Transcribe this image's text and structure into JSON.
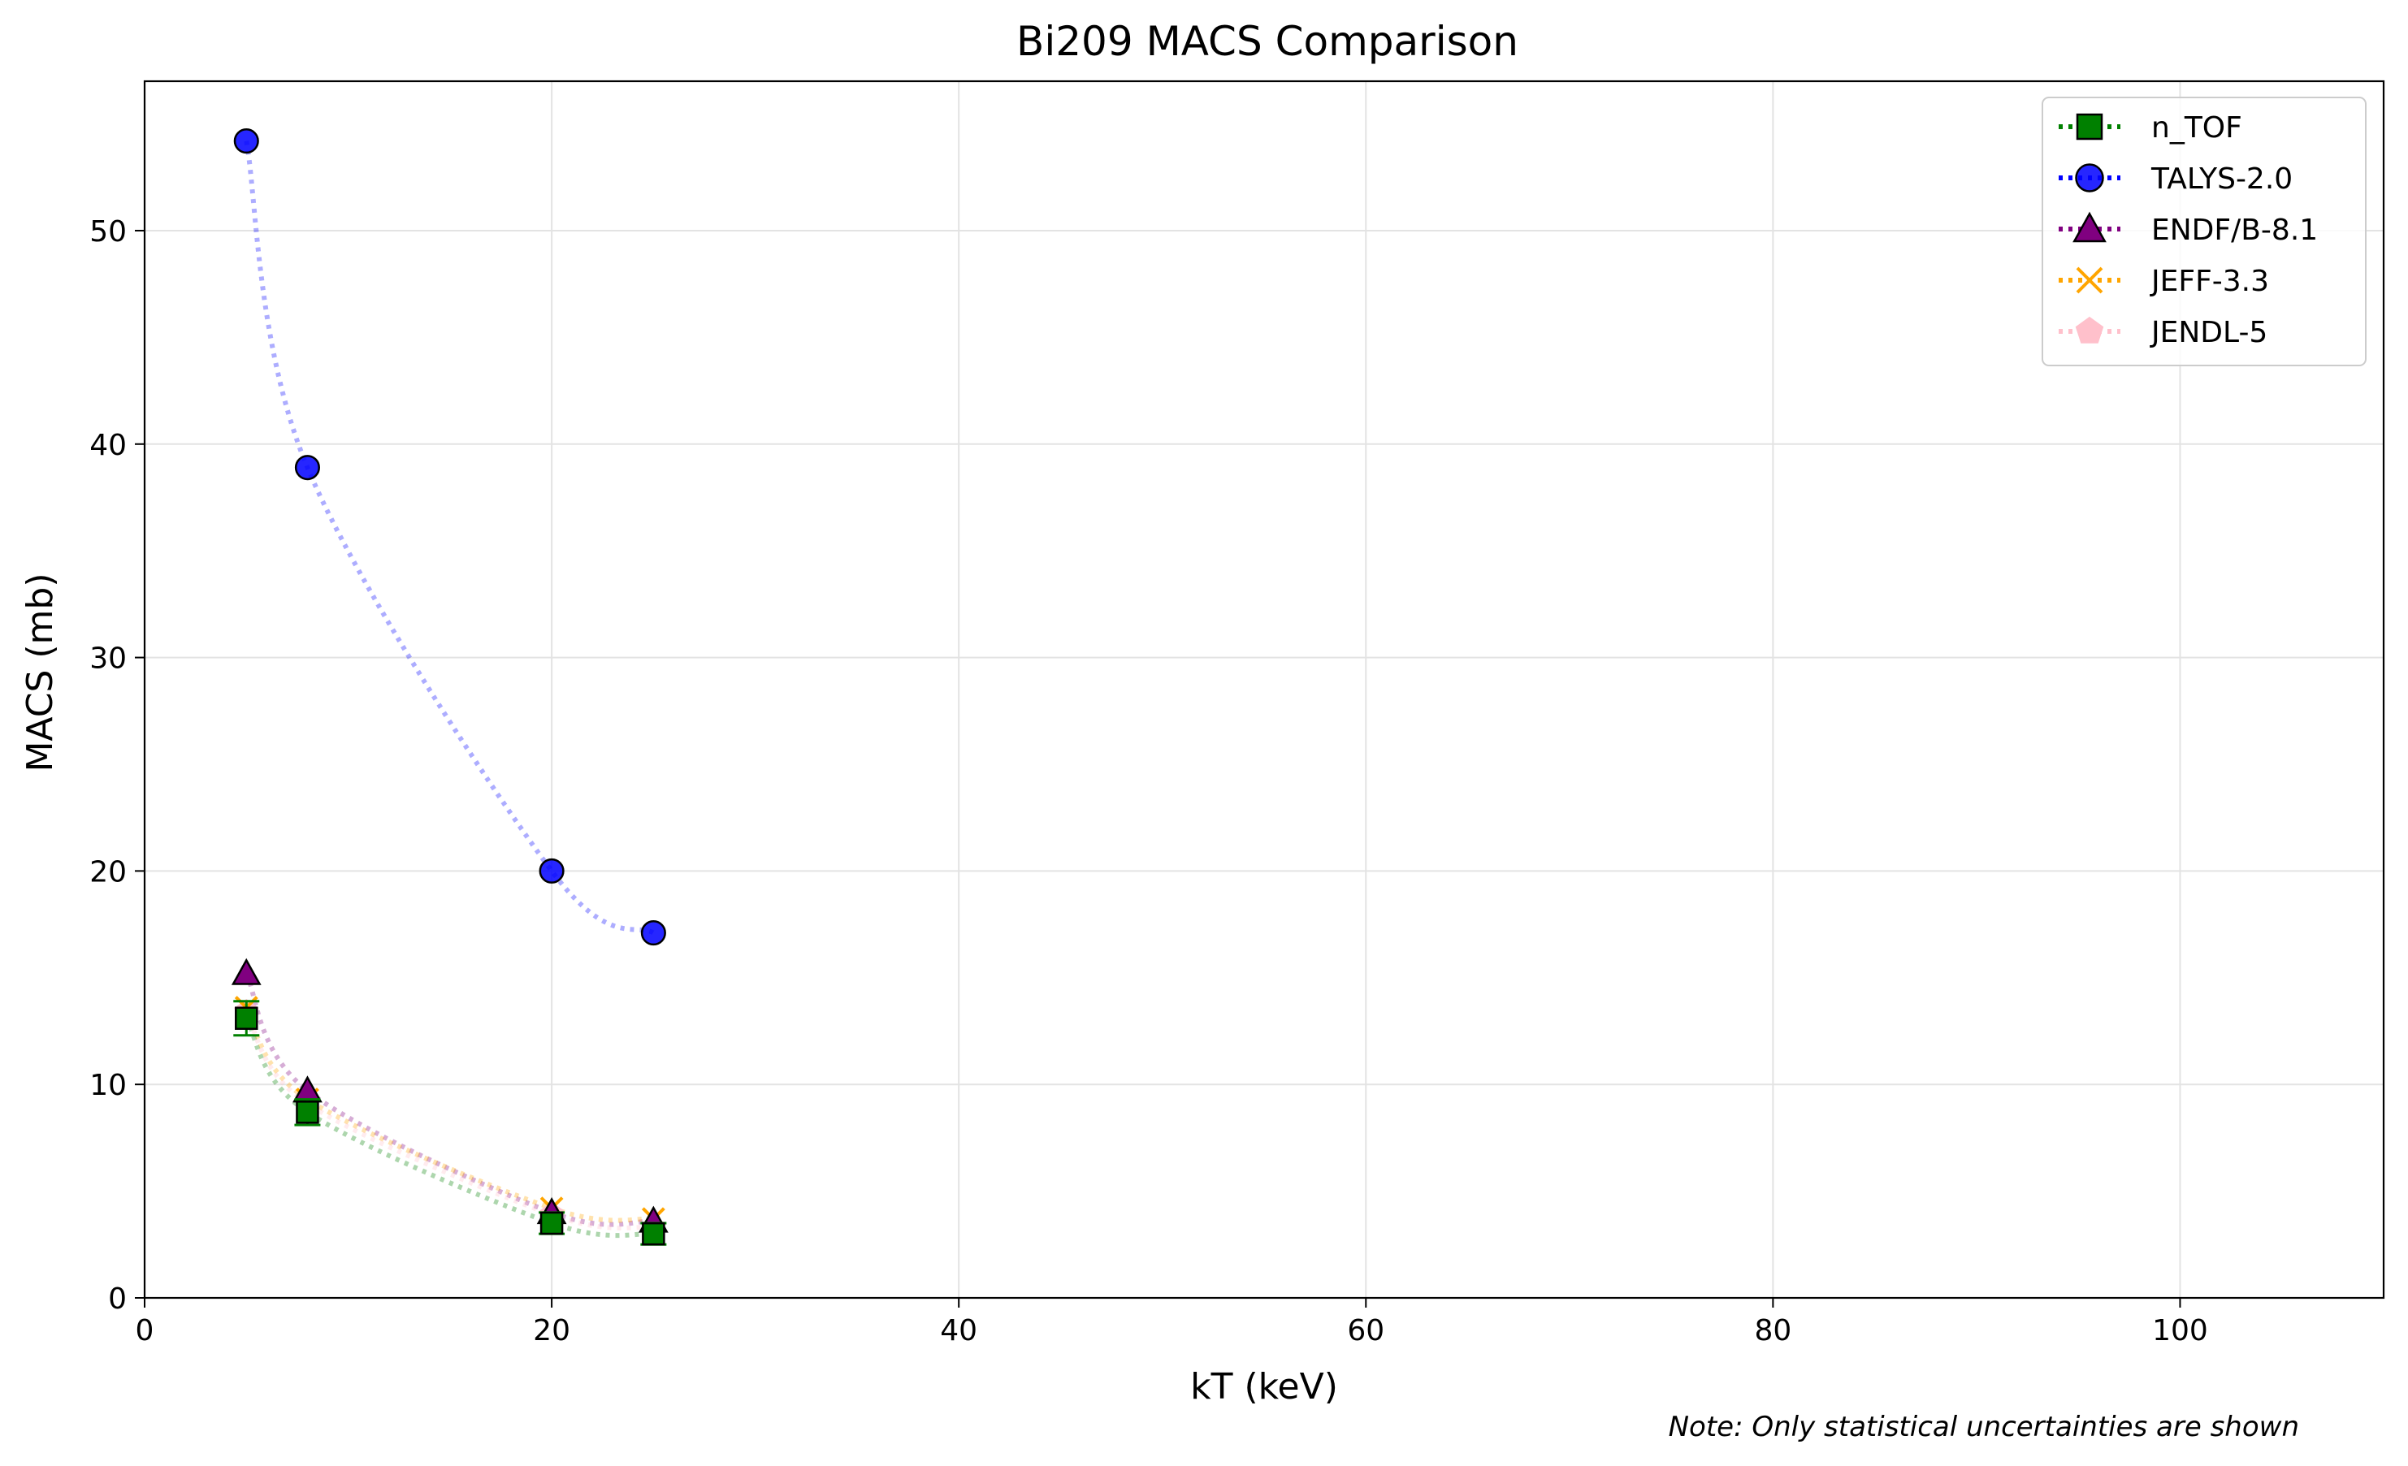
{
  "chart_data": {
    "type": "scatter",
    "title": "Bi209 MACS Comparison",
    "xlabel": "kT (keV)",
    "ylabel": "MACS (mb)",
    "xlim": [
      0,
      110
    ],
    "ylim": [
      0,
      57
    ],
    "xticks": [
      0,
      20,
      40,
      60,
      80,
      100
    ],
    "yticks": [
      0,
      10,
      20,
      30,
      40,
      50
    ],
    "grid": true,
    "legend_position": "top-right",
    "note": "Note: Only statistical uncertainties are shown",
    "series": [
      {
        "name": "n_TOF",
        "marker": "square",
        "color": "#008000",
        "x": [
          5,
          8,
          20,
          25
        ],
        "y": [
          13.1,
          8.7,
          3.5,
          3.0
        ],
        "yerr": [
          0.8,
          0.6,
          0.5,
          0.5
        ]
      },
      {
        "name": "TALYS-2.0",
        "marker": "circle",
        "color": "#0000ff",
        "x": [
          5,
          8,
          20,
          25
        ],
        "y": [
          54.2,
          38.9,
          20.0,
          17.1
        ]
      },
      {
        "name": "ENDF/B-8.1",
        "marker": "triangle",
        "color": "#800080",
        "x": [
          5,
          8,
          20,
          25
        ],
        "y": [
          15.2,
          9.7,
          4.0,
          3.6
        ]
      },
      {
        "name": "JEFF-3.3",
        "marker": "x",
        "color": "#ffa500",
        "x": [
          5,
          8,
          20,
          25
        ],
        "y": [
          13.6,
          9.3,
          4.2,
          3.7
        ]
      },
      {
        "name": "JENDL-5",
        "marker": "pentagon",
        "color": "#ffc0cb",
        "x": [
          5,
          8,
          20,
          25
        ],
        "y": [
          13.4,
          9.1,
          3.9,
          3.3
        ]
      }
    ]
  }
}
